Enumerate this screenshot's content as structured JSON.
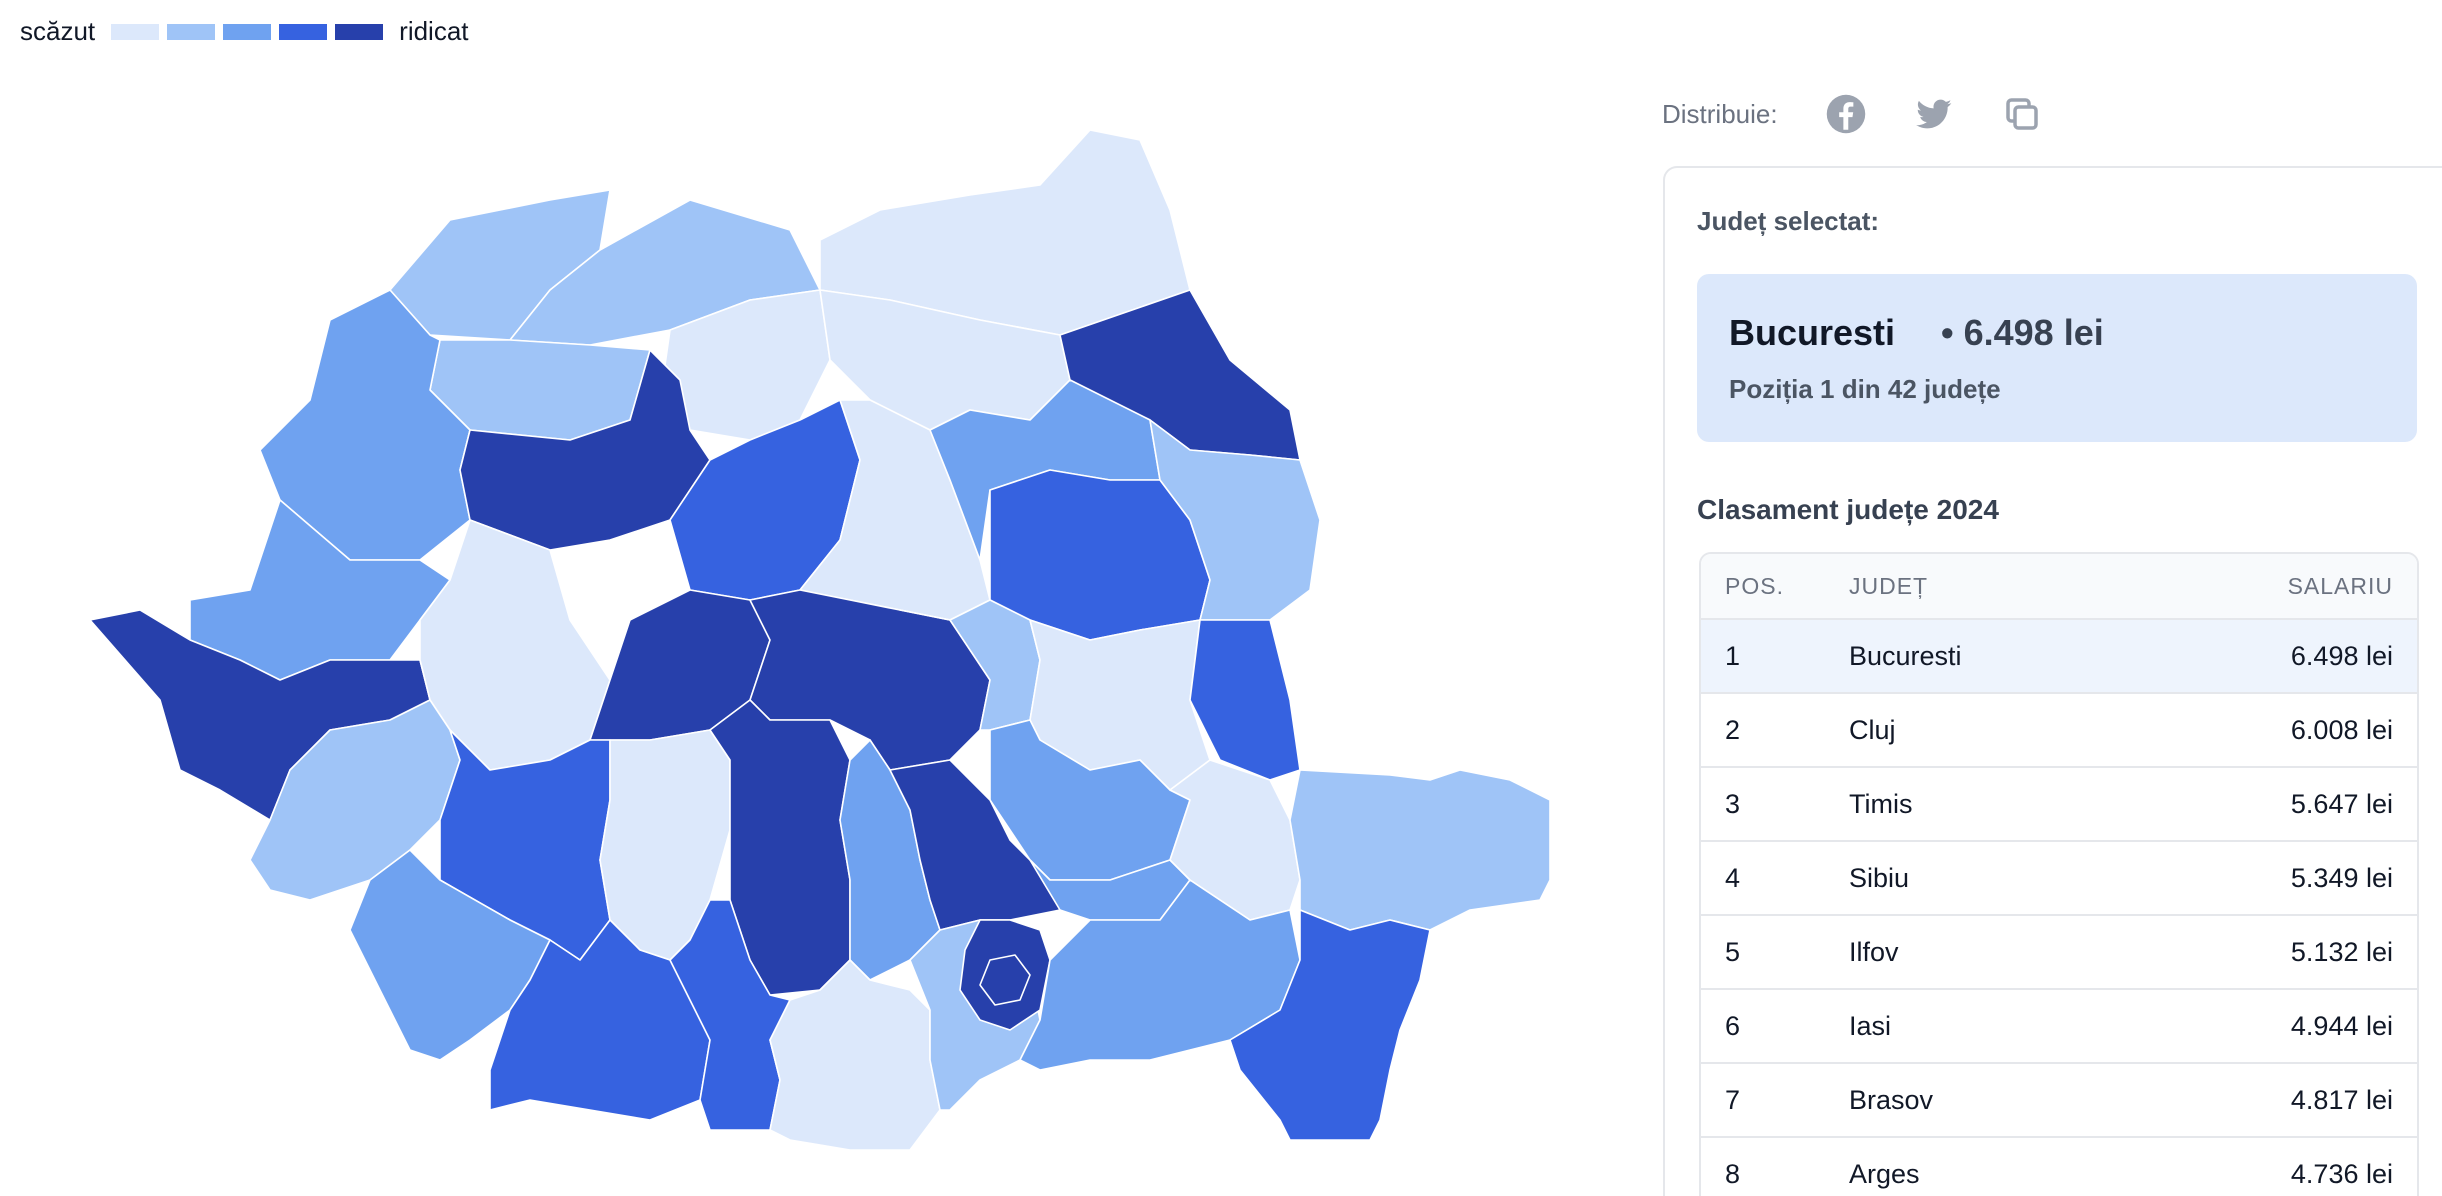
{
  "legend": {
    "low_label": "scăzut",
    "high_label": "ridicat",
    "colors": [
      "#dce8fb",
      "#9fc4f7",
      "#6fa2f0",
      "#3662e0",
      "#2740ab"
    ]
  },
  "map": {
    "title": "",
    "colors": {
      "c1": "#dce8fb",
      "c2": "#9fc4f7",
      "c3": "#6fa2f0",
      "c4": "#3662e0",
      "c5": "#2740ab"
    }
  },
  "share": {
    "label": "Distribuie:",
    "icons": [
      "facebook-icon",
      "twitter-icon",
      "copy-icon"
    ],
    "icon_color": "#9ca3af"
  },
  "panel": {
    "selected_label": "Județ selectat:",
    "selected": {
      "name": "Bucuresti",
      "value": "• 6.498 lei",
      "position": "Poziția 1 din 42 județe"
    },
    "ranking_title": "Clasament județe 2024",
    "table": {
      "headers": {
        "pos": "POS.",
        "county": "JUDEȚ",
        "salary": "SALARIU"
      },
      "rows": [
        {
          "pos": "1",
          "county": "Bucuresti",
          "salary": "6.498 lei"
        },
        {
          "pos": "2",
          "county": "Cluj",
          "salary": "6.008 lei"
        },
        {
          "pos": "3",
          "county": "Timis",
          "salary": "5.647 lei"
        },
        {
          "pos": "4",
          "county": "Sibiu",
          "salary": "5.349 lei"
        },
        {
          "pos": "5",
          "county": "Ilfov",
          "salary": "5.132 lei"
        },
        {
          "pos": "6",
          "county": "Iasi",
          "salary": "4.944 lei"
        },
        {
          "pos": "7",
          "county": "Brasov",
          "salary": "4.817 lei"
        },
        {
          "pos": "8",
          "county": "Arges",
          "salary": "4.736 lei"
        }
      ]
    }
  }
}
